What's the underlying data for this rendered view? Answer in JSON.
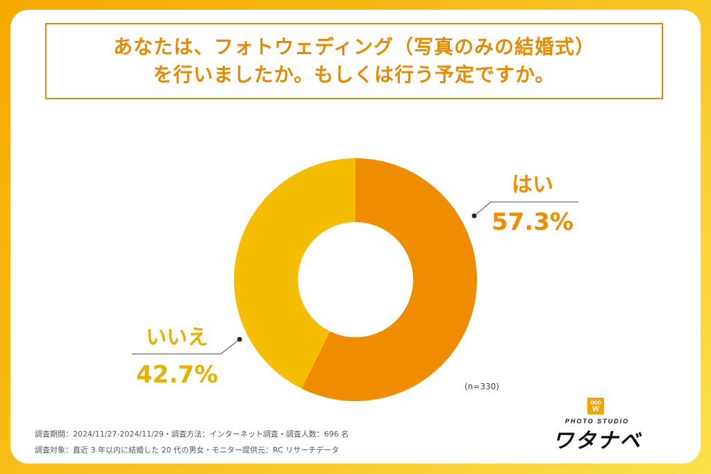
{
  "title": {
    "line1": "あなたは、フォトウェディング（写真のみの結婚式）",
    "line2": "を行いましたか。もしくは行う予定ですか。"
  },
  "chart_data": {
    "type": "pie",
    "donut": true,
    "categories": [
      "はい",
      "いいえ"
    ],
    "values": [
      57.3,
      42.7
    ],
    "value_labels": [
      "57.3%",
      "42.7%"
    ],
    "colors": [
      "#ef8c00",
      "#f5bd00"
    ],
    "label_colors": [
      "#ef8c00",
      "#e8b000"
    ]
  },
  "sample_note": "(n=330)",
  "footnotes": {
    "line1": "調査期間：2024/11/27-2024/11/29・調査方法：インターネット調査・調査人数：696 名",
    "line2": "調査対象：直近 3 年以内に結婚した 20 代の男女・モニター提供元：RC リサーチデータ"
  },
  "logo": {
    "sub": "PHOTO STUDIO",
    "main": "ワタナベ",
    "mark": "W",
    "mark_color": "#f2a400"
  }
}
